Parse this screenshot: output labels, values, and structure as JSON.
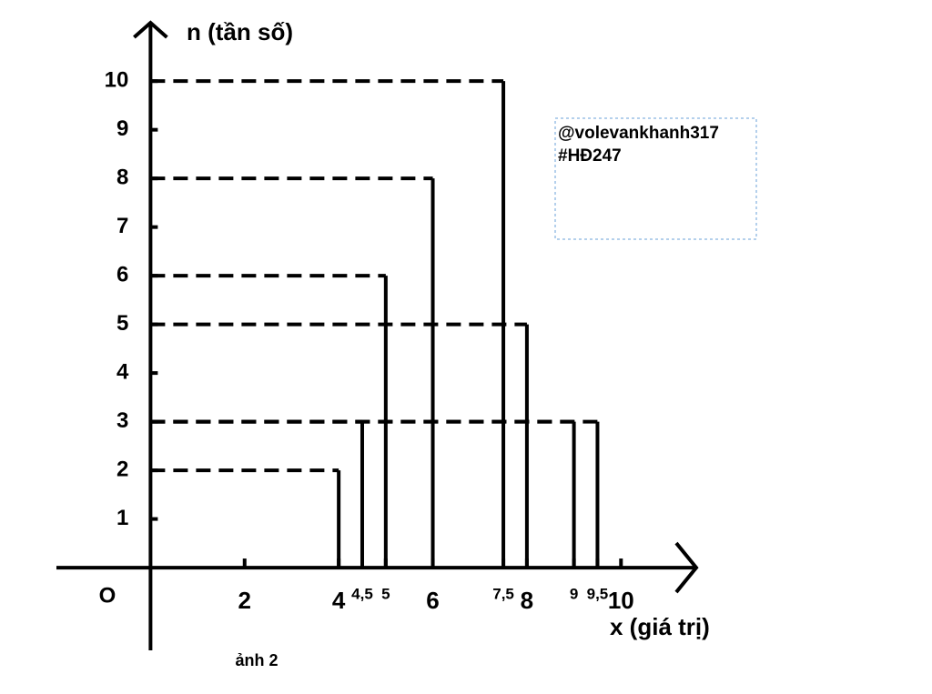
{
  "chart_data": {
    "type": "stem",
    "y_label": "n (tần số)",
    "x_label": "x (giá trị)",
    "origin_label": "O",
    "caption": "ảnh 2",
    "annotation": [
      "@volevankhanh317",
      "#HĐ247"
    ],
    "x": [
      4,
      4.5,
      5,
      6,
      7.5,
      8,
      9,
      9.5
    ],
    "values": [
      2,
      3,
      6,
      8,
      10,
      5,
      3,
      3
    ],
    "color": "#000000",
    "xlim": [
      -2,
      11.6
    ],
    "ylim": [
      -1.7,
      11.2
    ],
    "xticks": [
      2,
      4,
      {
        "value": 4.5,
        "label": "4,5"
      },
      5,
      6,
      {
        "value": 7.5,
        "label": "7,5"
      },
      8,
      9,
      {
        "value": 9.5,
        "label": "9,5"
      },
      10
    ],
    "yticks": [
      1,
      2,
      3,
      4,
      5,
      6,
      7,
      8,
      9,
      10
    ]
  }
}
